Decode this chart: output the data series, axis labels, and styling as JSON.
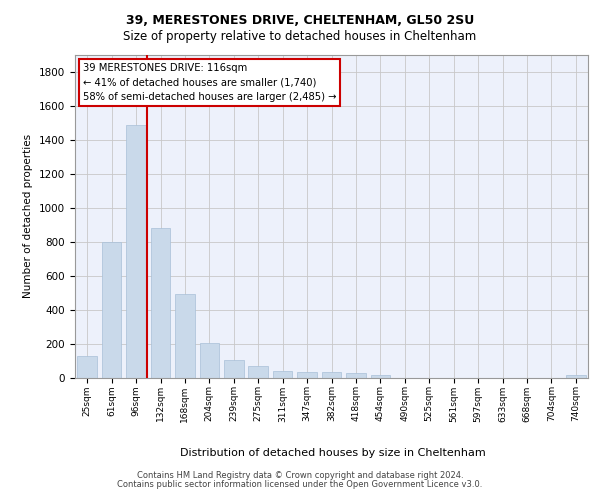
{
  "title1": "39, MERESTONES DRIVE, CHELTENHAM, GL50 2SU",
  "title2": "Size of property relative to detached houses in Cheltenham",
  "xlabel": "Distribution of detached houses by size in Cheltenham",
  "ylabel": "Number of detached properties",
  "footnote1": "Contains HM Land Registry data © Crown copyright and database right 2024.",
  "footnote2": "Contains public sector information licensed under the Open Government Licence v3.0.",
  "property_label": "39 MERESTONES DRIVE: 116sqm",
  "annotation_line1": "← 41% of detached houses are smaller (1,740)",
  "annotation_line2": "58% of semi-detached houses are larger (2,485) →",
  "bar_color": "#c9d9ea",
  "bar_edge_color": "#a8c0d8",
  "vline_color": "#cc0000",
  "annotation_box_edge": "#cc0000",
  "grid_color": "#c8c8c8",
  "background_color": "#edf1fb",
  "categories": [
    "25sqm",
    "61sqm",
    "96sqm",
    "132sqm",
    "168sqm",
    "204sqm",
    "239sqm",
    "275sqm",
    "311sqm",
    "347sqm",
    "382sqm",
    "418sqm",
    "454sqm",
    "490sqm",
    "525sqm",
    "561sqm",
    "597sqm",
    "633sqm",
    "668sqm",
    "704sqm",
    "740sqm"
  ],
  "values": [
    125,
    800,
    1490,
    880,
    490,
    205,
    105,
    65,
    40,
    35,
    30,
    25,
    15,
    0,
    0,
    0,
    0,
    0,
    0,
    0,
    15
  ],
  "ylim": [
    0,
    1900
  ],
  "vline_x": 2.45
}
